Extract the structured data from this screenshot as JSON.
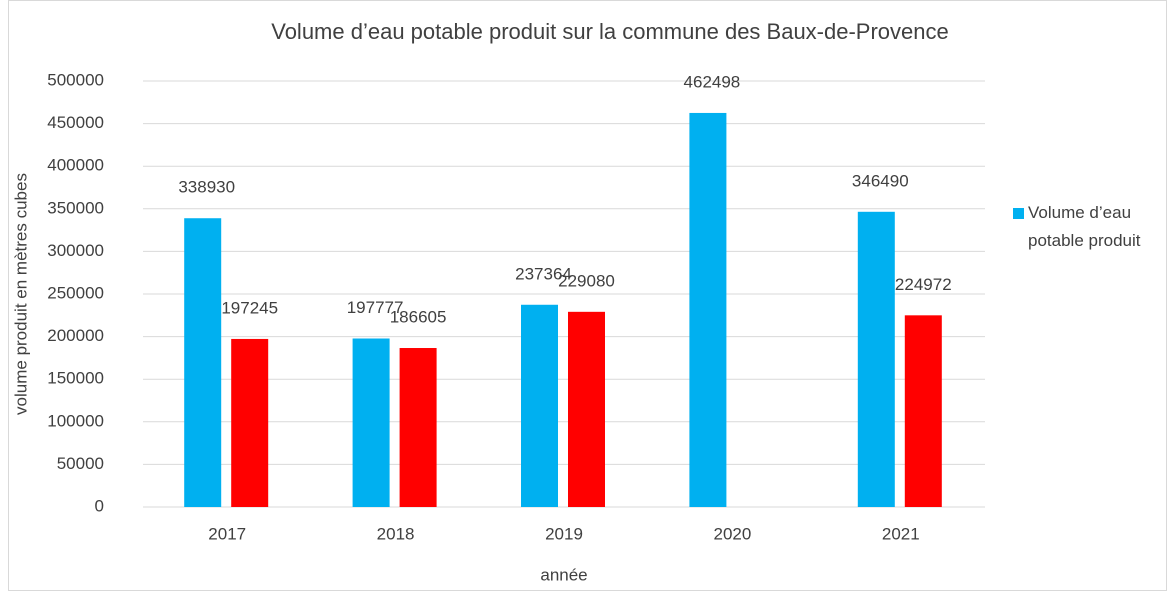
{
  "chart_data": {
    "type": "bar",
    "title": "Volume d’eau potable produit sur la commune des Baux-de-Provence",
    "x_label": "année",
    "y_label": "volume produit en mètres cubes",
    "categories": [
      "2017",
      "2018",
      "2019",
      "2020",
      "2021"
    ],
    "series": [
      {
        "name": "Volume d’eau potable produit",
        "color": "#00b0f0",
        "values": [
          338930,
          197777,
          237364,
          462498,
          346490
        ]
      },
      {
        "color": "#ff0000",
        "values": [
          197245,
          186605,
          229080,
          null,
          224972
        ]
      }
    ],
    "ylim": [
      0,
      500000
    ],
    "yticks": [
      0,
      50000,
      100000,
      150000,
      200000,
      250000,
      300000,
      350000,
      400000,
      450000,
      500000
    ],
    "grid": true,
    "legend": "right"
  }
}
